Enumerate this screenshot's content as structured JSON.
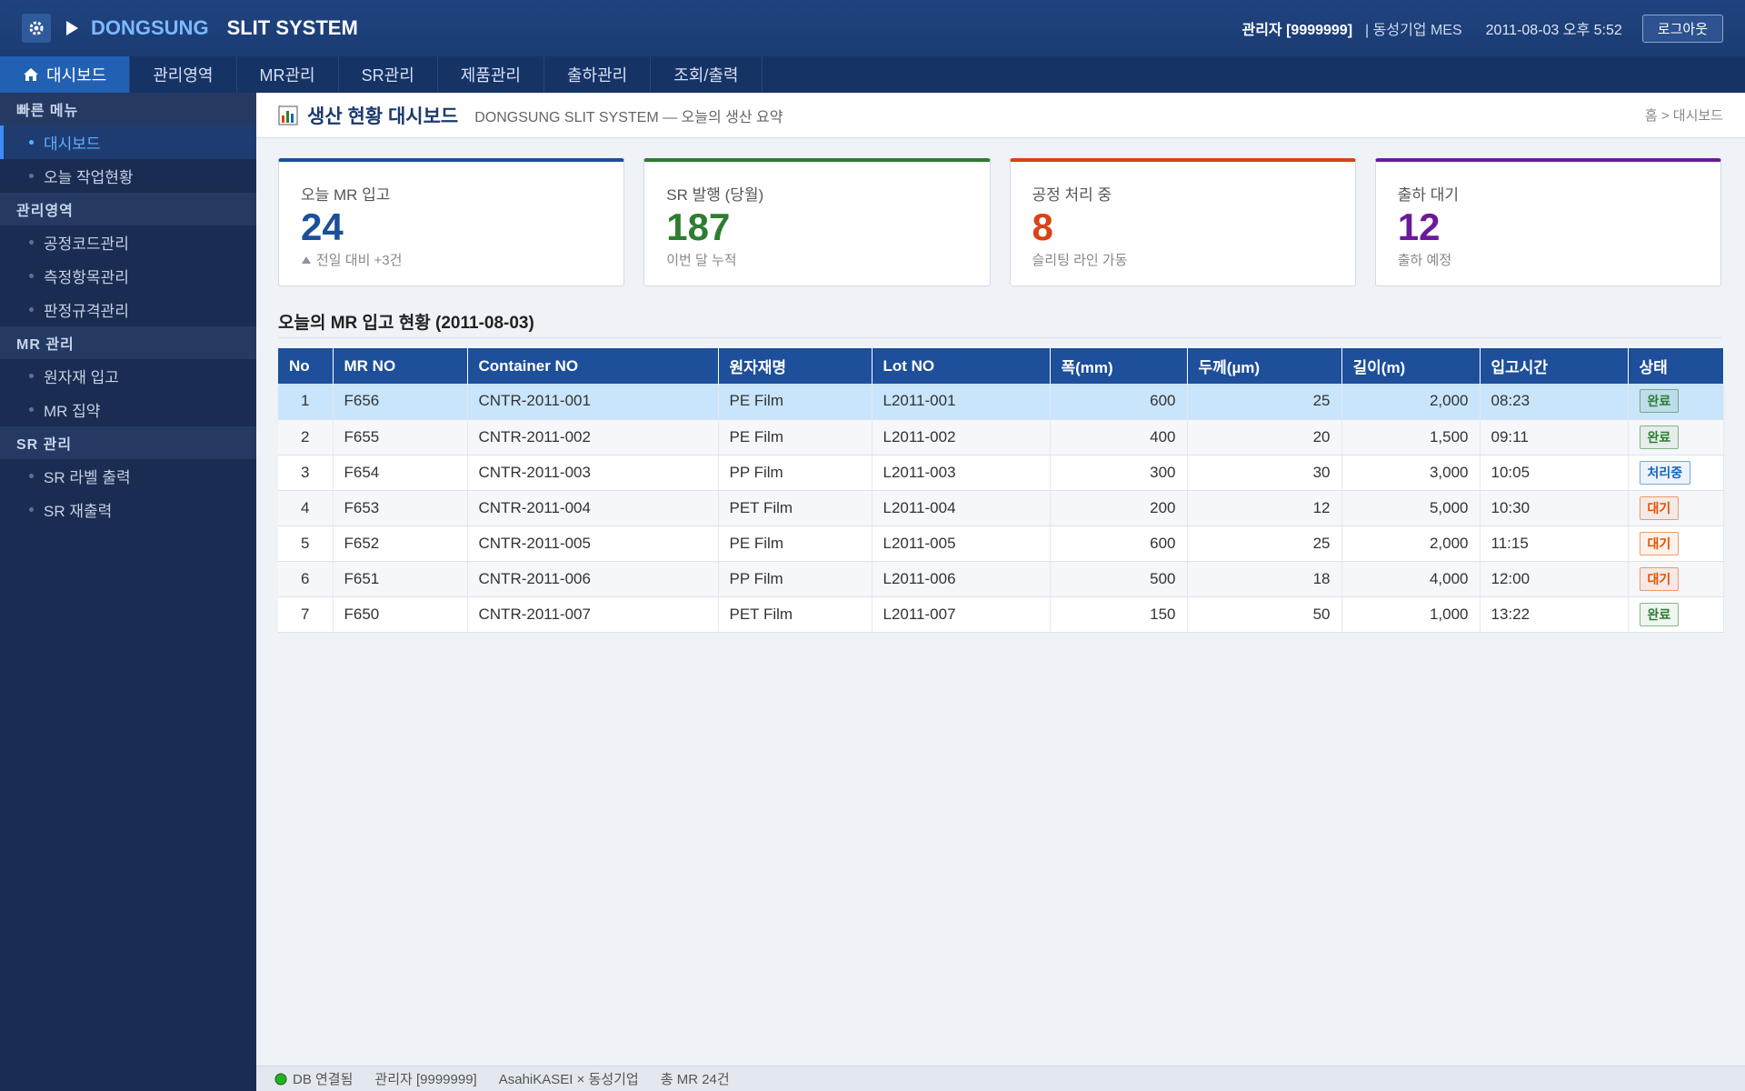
{
  "header": {
    "brand_primary": "DONGSUNG",
    "brand_secondary": "SLIT SYSTEM",
    "user": "관리자 [9999999]",
    "company": "| 동성기업 MES",
    "datetime": "2011-08-03 오후 5:52",
    "logout": "로그아웃"
  },
  "nav": {
    "tabs": [
      "대시보드",
      "관리영역",
      "MR관리",
      "SR관리",
      "제품관리",
      "출하관리",
      "조회/출력"
    ],
    "active": 0
  },
  "sidebar": {
    "groups": [
      {
        "title": "빠른 메뉴",
        "items": [
          "대시보드",
          "오늘 작업현황"
        ]
      },
      {
        "title": "관리영역",
        "items": [
          "공정코드관리",
          "측정항목관리",
          "판정규격관리"
        ]
      },
      {
        "title": "MR 관리",
        "items": [
          "원자재 입고",
          "MR 집약"
        ]
      },
      {
        "title": "SR 관리",
        "items": [
          "SR 라벨 출력",
          "SR 재출력"
        ]
      }
    ],
    "active": [
      0,
      0
    ]
  },
  "page": {
    "title": "생산 현황 대시보드",
    "subtitle": "DONGSUNG SLIT SYSTEM — 오늘의 생산 요약",
    "breadcrumb": "홈 > 대시보드"
  },
  "kpis": [
    {
      "label": "오늘 MR 입고",
      "value": 24,
      "note": "전일 대비 +3건",
      "color": "#1d4f9a",
      "trend": "up"
    },
    {
      "label": "SR 발행 (당월)",
      "value": 187,
      "note": "이번 달 누적",
      "color": "#2e7d32"
    },
    {
      "label": "공정 처리 중",
      "value": 8,
      "note": "슬리팅 라인 가동",
      "color": "#d84315"
    },
    {
      "label": "출하 대기",
      "value": 12,
      "note": "출하 예정",
      "color": "#6a1b9a"
    }
  ],
  "table": {
    "title": "오늘의 MR 입고 현황 (2011-08-03)",
    "columns": [
      "No",
      "MR NO",
      "Container NO",
      "원자재명",
      "Lot NO",
      "폭(mm)",
      "두께(µm)",
      "길이(m)",
      "입고시간",
      "상태"
    ],
    "align": [
      "center",
      "left",
      "left",
      "left",
      "left",
      "right",
      "right",
      "right",
      "left",
      "left"
    ],
    "selected_row": 0,
    "rows": [
      {
        "cells": [
          "1",
          "F656",
          "CNTR-2011-001",
          "PE Film",
          "L2011-001",
          "600",
          "25",
          "2,000",
          "08:23"
        ],
        "status": "완료",
        "status_color": "#2e7d32"
      },
      {
        "cells": [
          "2",
          "F655",
          "CNTR-2011-002",
          "PE Film",
          "L2011-002",
          "400",
          "20",
          "1,500",
          "09:11"
        ],
        "status": "완료",
        "status_color": "#2e7d32"
      },
      {
        "cells": [
          "3",
          "F654",
          "CNTR-2011-003",
          "PP Film",
          "L2011-003",
          "300",
          "30",
          "3,000",
          "10:05"
        ],
        "status": "처리중",
        "status_color": "#1565c0"
      },
      {
        "cells": [
          "4",
          "F653",
          "CNTR-2011-004",
          "PET Film",
          "L2011-004",
          "200",
          "12",
          "5,000",
          "10:30"
        ],
        "status": "대기",
        "status_color": "#e65100"
      },
      {
        "cells": [
          "5",
          "F652",
          "CNTR-2011-005",
          "PE Film",
          "L2011-005",
          "600",
          "25",
          "2,000",
          "11:15"
        ],
        "status": "대기",
        "status_color": "#e65100"
      },
      {
        "cells": [
          "6",
          "F651",
          "CNTR-2011-006",
          "PP Film",
          "L2011-006",
          "500",
          "18",
          "4,000",
          "12:00"
        ],
        "status": "대기",
        "status_color": "#e65100"
      },
      {
        "cells": [
          "7",
          "F650",
          "CNTR-2011-007",
          "PET Film",
          "L2011-007",
          "150",
          "50",
          "1,000",
          "13:22"
        ],
        "status": "완료",
        "status_color": "#2e7d32"
      }
    ]
  },
  "footer": {
    "db": "DB 연결됨",
    "user": "관리자 [9999999]",
    "partners": "AsahiKASEI × 동성기업",
    "total": "총 MR 24건"
  }
}
